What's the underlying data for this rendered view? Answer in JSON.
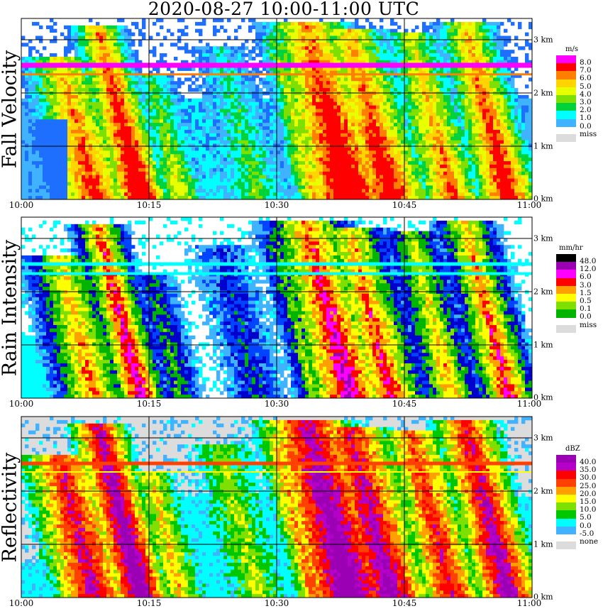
{
  "title": "2020-08-27   10:00-11:00 UTC",
  "colors": {
    "miss_gray": "#dcdcdc",
    "fall_velocity": [
      "#0000cc",
      "#1f6fff",
      "#3fb3ff",
      "#00ffff",
      "#00d23c",
      "#7fdf00",
      "#e8ff00",
      "#ffd400",
      "#ff8000",
      "#ff0000",
      "#ff00ff"
    ],
    "rain_intensity": [
      "#ffffff",
      "#00ffff",
      "#3fb3ff",
      "#0044ff",
      "#0000cc",
      "#00b400",
      "#7fdf00",
      "#ffff00",
      "#ffa000",
      "#ff0000",
      "#ff00ff",
      "#9c00b4",
      "#000000"
    ],
    "reflectivity": [
      "#0000cc",
      "#1f6fff",
      "#3fb3ff",
      "#00ffff",
      "#00c800",
      "#7fdf00",
      "#ffff00",
      "#ffa000",
      "#ff4000",
      "#ff0000",
      "#b400c8",
      "#9c00b4"
    ]
  },
  "chart_data": [
    {
      "type": "heatmap",
      "panel_label": "Fall Velocity",
      "x_ticks": [
        "10:00",
        "10:15",
        "10:30",
        "10:45",
        "11:00"
      ],
      "y_ticks": [
        "0 km",
        "1 km",
        "2 km",
        "3 km"
      ],
      "legend_title": "m/s",
      "legend_labels": [
        "8.0",
        "7.0",
        "6.0",
        "5.0",
        "4.0",
        "3.0",
        "2.0",
        "1.0",
        "0.0",
        "miss"
      ],
      "grid": true
    },
    {
      "type": "heatmap",
      "panel_label": "Rain Intensity",
      "x_ticks": [
        "10:00",
        "10:15",
        "10:30",
        "10:45",
        "11:00"
      ],
      "y_ticks": [
        "0 km",
        "1 km",
        "2 km",
        "3 km"
      ],
      "legend_title": "mm/hr",
      "legend_labels": [
        "48.0",
        "12.0",
        "6.0",
        "3.0",
        "1.5",
        "0.5",
        "0.1",
        "0.0",
        "miss"
      ],
      "grid": true
    },
    {
      "type": "heatmap",
      "panel_label": "Reflectivity",
      "x_ticks": [
        "10:00",
        "10:15",
        "10:30",
        "10:45",
        "11:00"
      ],
      "y_ticks": [
        "0 km",
        "1 km",
        "2 km",
        "3 km"
      ],
      "legend_title": "dBZ",
      "legend_labels": [
        "40.0",
        "35.0",
        "30.0",
        "25.0",
        "20.0",
        "15.0",
        "10.0",
        "5.0",
        "0.0",
        "-5.0",
        "none"
      ],
      "grid": true
    }
  ]
}
